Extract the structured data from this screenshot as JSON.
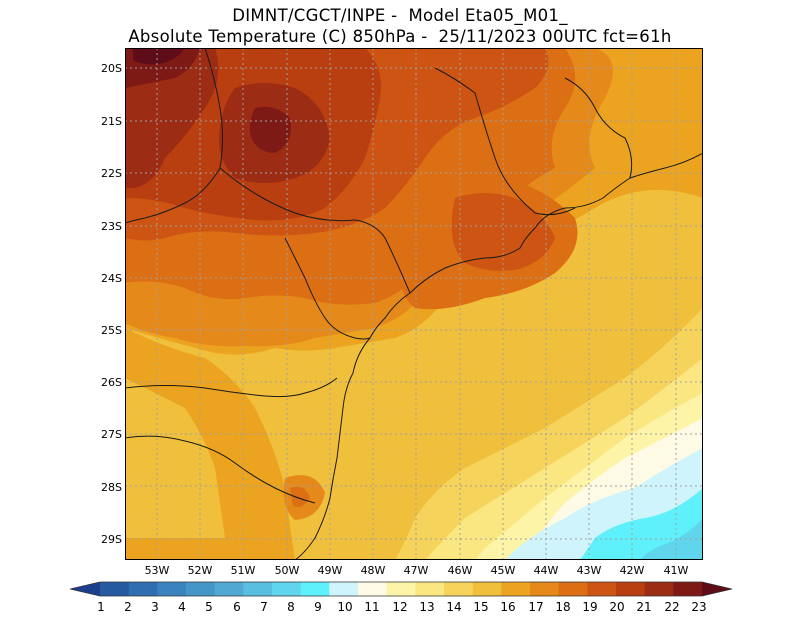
{
  "header": {
    "line1": "DIMNT/CGCT/INPE -  Model Eta05_M01_",
    "line2": "Absolute Temperature (C) 850hPa -  25/11/2023 00UTC fct=61h"
  },
  "axes": {
    "latitudes": [
      "20S",
      "21S",
      "22S",
      "23S",
      "24S",
      "25S",
      "26S",
      "27S",
      "28S",
      "29S"
    ],
    "longitudes": [
      "53W",
      "52W",
      "51W",
      "50W",
      "49W",
      "48W",
      "47W",
      "46W",
      "45W",
      "44W",
      "43W",
      "42W",
      "41W"
    ]
  },
  "colorbar": {
    "labels": [
      "1",
      "2",
      "3",
      "4",
      "5",
      "6",
      "7",
      "8",
      "9",
      "10",
      "11",
      "12",
      "13",
      "14",
      "15",
      "16",
      "17",
      "18",
      "19",
      "20",
      "21",
      "22",
      "23"
    ],
    "colors": [
      "#1b3f8c",
      "#255aa0",
      "#2f6eb0",
      "#3a83bf",
      "#4496c9",
      "#4fa9d3",
      "#58bfe0",
      "#5fd6ee",
      "#5ef0fb",
      "#cff4fb",
      "#fdfbe6",
      "#fdf4a8",
      "#fbe782",
      "#f6d45c",
      "#f0bf3c",
      "#eca420",
      "#e58a1a",
      "#dc6e14",
      "#cd5412",
      "#b93f10",
      "#9c2c14",
      "#7e1a16",
      "#5e0c17"
    ]
  }
}
